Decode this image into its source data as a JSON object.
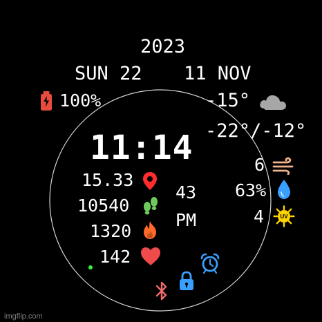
{
  "watchface": {
    "year": "2023",
    "day": "SUN  22",
    "month": "11  NOV",
    "battery": "100%",
    "temp_now": "-15°",
    "temp_range": "-22°/-12°",
    "time": "11:14",
    "distance": "15.33",
    "steps": "10540",
    "calories": "1320",
    "heart_rate": "142",
    "seconds": "43",
    "ampm": "PM",
    "wind": "6",
    "humidity": "63%",
    "uv": "4",
    "watermark": "imgflip.com"
  },
  "icons": {
    "battery": "battery-icon",
    "cloud": "cloud-icon",
    "location": "location-pin-icon",
    "steps": "footsteps-icon",
    "calories": "flame-icon",
    "heart": "heart-icon",
    "wind": "wind-icon",
    "humidity": "water-drop-icon",
    "uv": "uv-sun-icon",
    "alarm": "alarm-clock-icon",
    "lock": "lock-icon",
    "bluetooth": "bluetooth-icon"
  },
  "colors": {
    "background": "#000000",
    "text": "#ffffff",
    "battery": "#e74c3c",
    "pin": "#ff2d2d",
    "steps": "#70c95e",
    "flame": "#ff6a2a",
    "heart": "#ef4b4b",
    "wind": "#f0b38a",
    "drop": "#3aa0ff",
    "uv": "#ffd400",
    "alarm": "#3aa0ff",
    "lock": "#3aa0ff",
    "bluetooth": "#f06b6b",
    "cloud": "#a7a7a7"
  }
}
